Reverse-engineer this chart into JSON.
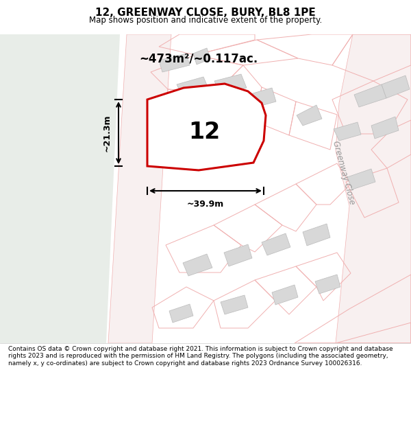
{
  "title": "12, GREENWAY CLOSE, BURY, BL8 1PE",
  "subtitle": "Map shows position and indicative extent of the property.",
  "footer": "Contains OS data © Crown copyright and database right 2021. This information is subject to Crown copyright and database rights 2023 and is reproduced with the permission of HM Land Registry. The polygons (including the associated geometry, namely x, y co-ordinates) are subject to Crown copyright and database rights 2023 Ordnance Survey 100026316.",
  "bg_map_color": "#f5f5f5",
  "bg_left_color": "#e8ede8",
  "plot_fill_color": "#ffffff",
  "plot_border_color": "#cc0000",
  "road_color": "#f0b0b0",
  "building_fill_color": "#d8d8d8",
  "building_outline_color": "#bbbbbb",
  "street_label": "Greenway Close",
  "area_label": "~473m²/~0.117ac.",
  "plot_label": "12",
  "dim_width": "~39.9m",
  "dim_height": "~21.3m"
}
